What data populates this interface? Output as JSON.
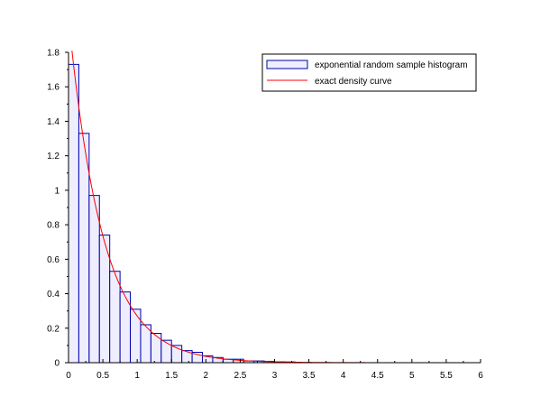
{
  "chart_data": {
    "type": "bar",
    "title": "",
    "xlabel": "",
    "ylabel": "",
    "xlim": [
      0,
      6
    ],
    "ylim": [
      0,
      1.8
    ],
    "grid": false,
    "legend_position": "top-right",
    "x_ticks": [
      "0",
      "0.5",
      "1",
      "1.5",
      "2",
      "2.5",
      "3",
      "3.5",
      "4",
      "4.5",
      "5",
      "5.5",
      "6"
    ],
    "y_ticks": [
      "0",
      "0.2",
      "0.4",
      "0.6",
      "0.8",
      "1",
      "1.2",
      "1.4",
      "1.6",
      "1.8"
    ],
    "histogram": {
      "name": "exponential random sample histogram",
      "bin_edges": [
        0.15,
        0.3,
        0.45,
        0.6,
        0.75,
        0.9,
        1.05,
        1.2,
        1.35,
        1.5,
        1.65,
        1.8,
        1.95,
        2.1,
        2.25,
        2.4,
        2.55,
        2.7,
        2.85,
        3.0,
        3.15,
        3.3
      ],
      "first_bin_start": 0.0,
      "values": [
        1.73,
        1.33,
        0.97,
        0.74,
        0.53,
        0.41,
        0.31,
        0.22,
        0.17,
        0.13,
        0.1,
        0.07,
        0.06,
        0.04,
        0.03,
        0.02,
        0.02,
        0.01,
        0.01,
        0.008,
        0.005,
        0.004
      ],
      "fill_color": "#eeeeff",
      "edge_color": "#0000aa"
    },
    "density": {
      "name": "exact density curve",
      "rate": 2.0,
      "x_range": [
        0.05,
        5.9
      ],
      "color": "#ff0000"
    }
  }
}
